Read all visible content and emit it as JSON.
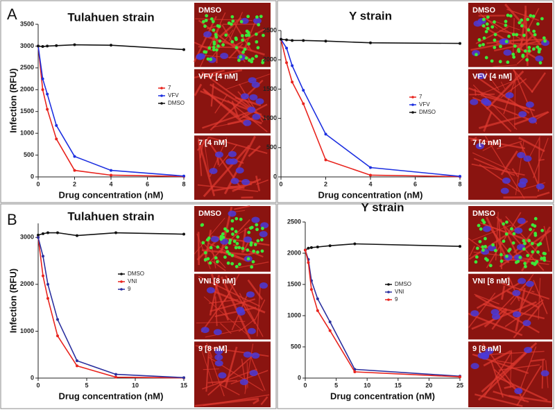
{
  "panel_labels": [
    "A",
    "B"
  ],
  "image_labels": [
    [
      "DMSO",
      "VFV [4 nM]",
      "7 [4 nM]"
    ],
    [
      "DMSO",
      "VFV [4 nM]",
      "7 [4 nM]"
    ],
    [
      "DMSO",
      "VNI [8 nM]",
      "9 [8 nM]"
    ],
    [
      "DMSO",
      "VNI [8 nM]",
      "9 [8 nM]"
    ]
  ],
  "chart_data": [
    {
      "type": "line",
      "title": "Tulahuen strain",
      "x_label": "Drug concentration (nM)",
      "y_label": "Infection (RFU)",
      "x": [
        0,
        0.25,
        0.5,
        1,
        2,
        4,
        8
      ],
      "xlim": [
        0,
        8
      ],
      "xticks": [
        0,
        2,
        4,
        6,
        8
      ],
      "ylim": [
        0,
        3500
      ],
      "yticks": [
        0,
        500,
        1000,
        1500,
        2000,
        2500,
        3000,
        3500
      ],
      "series": [
        {
          "name": "7",
          "color": "#e8231d",
          "values": [
            3000,
            2000,
            1550,
            870,
            150,
            40,
            10
          ]
        },
        {
          "name": "VFV",
          "color": "#1c2fe0",
          "values": [
            3000,
            2250,
            1900,
            1180,
            470,
            150,
            20
          ]
        },
        {
          "name": "DMSO",
          "color": "#111111",
          "values": [
            3000,
            2990,
            3000,
            3010,
            3030,
            3020,
            2920
          ]
        }
      ]
    },
    {
      "type": "line",
      "title": "Y strain",
      "x_label": "Drug concentration (nM)",
      "x": [
        0,
        0.25,
        0.5,
        1,
        2,
        4,
        8
      ],
      "xlim": [
        0,
        8
      ],
      "xticks": [
        0,
        2,
        4,
        6,
        8
      ],
      "ylim": [
        0,
        2500
      ],
      "yticks": [
        0,
        500,
        1000,
        1500,
        2000,
        2500
      ],
      "series": [
        {
          "name": "7",
          "color": "#e8231d",
          "values": [
            2350,
            1950,
            1620,
            1250,
            290,
            30,
            5
          ]
        },
        {
          "name": "VFV",
          "color": "#1c2fe0",
          "values": [
            2350,
            2200,
            1900,
            1480,
            730,
            160,
            10
          ]
        },
        {
          "name": "DMSO",
          "color": "#111111",
          "values": [
            2350,
            2340,
            2330,
            2330,
            2320,
            2290,
            2280
          ]
        }
      ]
    },
    {
      "type": "line",
      "title": "Tulahuen strain",
      "x_label": "Drug concentration (nM)",
      "y_label": "Infection (RFU)",
      "x": [
        0,
        0.5,
        1,
        2,
        4,
        8,
        15
      ],
      "xlim": [
        0,
        15
      ],
      "xticks": [
        0,
        5,
        10,
        15
      ],
      "ylim": [
        0,
        3300
      ],
      "yticks": [
        0,
        1000,
        2000,
        3000
      ],
      "series": [
        {
          "name": "DMSO",
          "color": "#111111",
          "values": [
            3050,
            3080,
            3100,
            3100,
            3040,
            3100,
            3070
          ]
        },
        {
          "name": "VNI",
          "color": "#e8231d",
          "values": [
            3000,
            2180,
            1700,
            900,
            260,
            20,
            5
          ]
        },
        {
          "name": "9",
          "color": "#2a2f9e",
          "values": [
            3000,
            2600,
            2000,
            1250,
            370,
            80,
            10
          ]
        }
      ]
    },
    {
      "type": "line",
      "title": "Y strain",
      "x_label": "Drug concentration (nM)",
      "x": [
        0,
        0.5,
        1,
        2,
        4,
        8,
        25
      ],
      "xlim": [
        0,
        25
      ],
      "xticks": [
        0,
        5,
        10,
        15,
        20,
        25
      ],
      "ylim": [
        0,
        2500
      ],
      "yticks": [
        0,
        500,
        1000,
        1500,
        2000,
        2500
      ],
      "series": [
        {
          "name": "DMSO",
          "color": "#111111",
          "values": [
            2050,
            2080,
            2090,
            2100,
            2120,
            2150,
            2110
          ]
        },
        {
          "name": "VNI",
          "color": "#2a2f9e",
          "values": [
            2050,
            1900,
            1560,
            1270,
            900,
            140,
            30
          ]
        },
        {
          "name": "9",
          "color": "#e8231d",
          "values": [
            2050,
            1850,
            1420,
            1080,
            760,
            100,
            20
          ]
        }
      ]
    }
  ]
}
